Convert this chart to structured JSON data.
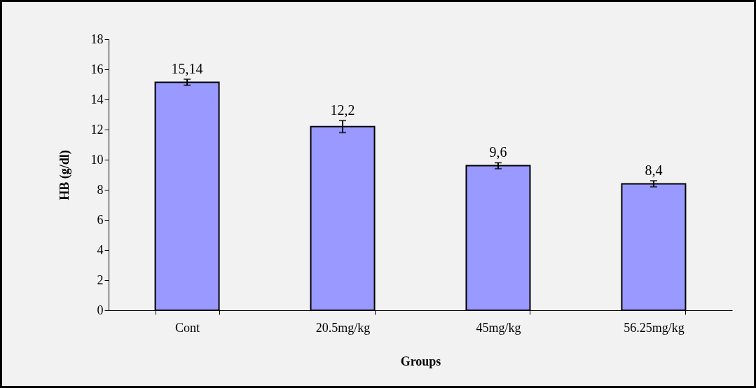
{
  "chart_data": {
    "type": "bar",
    "xlabel": "Groups",
    "ylabel": "HB (g/dl)",
    "categories": [
      "Cont",
      "20.5mg/kg",
      "45mg/kg",
      "56.25mg/kg"
    ],
    "values": [
      15.14,
      12.2,
      9.6,
      8.4
    ],
    "color": "#9999ff",
    "errors": [
      0.2,
      0.4,
      0.2,
      0.2
    ],
    "value_labels": [
      "15,14",
      "12,2",
      "9,6",
      "8,4"
    ],
    "ylim": [
      0,
      18
    ],
    "yticks": [
      0,
      2,
      4,
      6,
      8,
      10,
      12,
      14,
      16,
      18
    ],
    "grid": false
  }
}
